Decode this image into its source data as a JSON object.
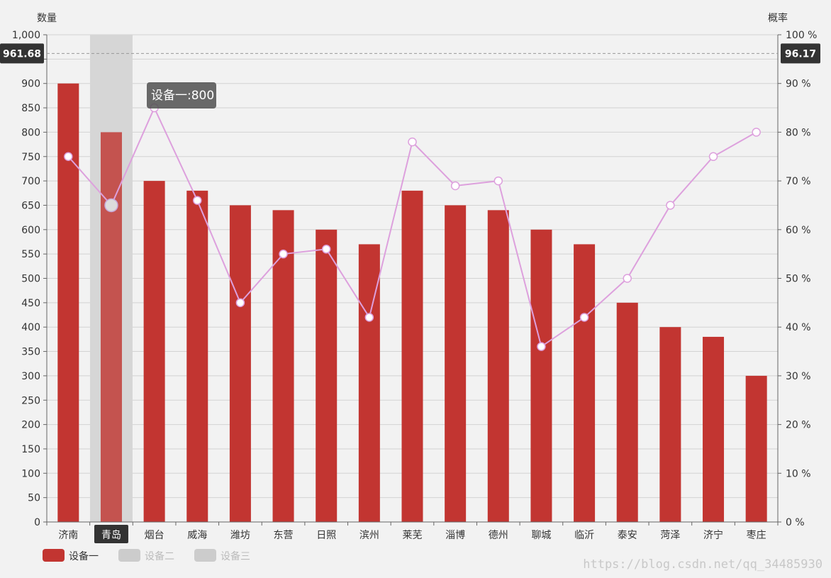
{
  "chart_data": {
    "type": "bar",
    "categories": [
      "济南",
      "青岛",
      "烟台",
      "威海",
      "潍坊",
      "东营",
      "日照",
      "滨州",
      "莱芜",
      "淄博",
      "德州",
      "聊城",
      "临沂",
      "泰安",
      "菏泽",
      "济宁",
      "枣庄"
    ],
    "series": [
      {
        "name": "设备一",
        "type": "bar",
        "values": [
          900,
          800,
          700,
          680,
          650,
          640,
          600,
          570,
          680,
          650,
          640,
          600,
          570,
          450,
          400,
          380,
          300
        ],
        "color": "#c23531"
      },
      {
        "name": "",
        "type": "line",
        "axis": "right",
        "values": [
          75,
          65,
          85,
          66,
          45,
          55,
          56,
          42,
          78,
          69,
          70,
          36,
          42,
          50,
          65,
          75,
          80
        ],
        "color": "#dda0dd"
      }
    ],
    "legend": {
      "placement": "bottom-left",
      "items": [
        {
          "name": "设备一",
          "active": true,
          "color": "#c23531"
        },
        {
          "name": "设备二",
          "active": false,
          "color": "#cccccc"
        },
        {
          "name": "设备三",
          "active": false,
          "color": "#cccccc"
        }
      ]
    },
    "y_left": {
      "label": "数量",
      "min": 0,
      "max": 1000,
      "step": 50,
      "format": "thousands"
    },
    "y_right": {
      "label": "概率",
      "min": 0,
      "max": 100,
      "step": 10,
      "suffix": " %"
    },
    "grid": true,
    "axis_pointer": {
      "left_value": "961.68",
      "right_value": "96.17",
      "y_value": 961.68
    },
    "highlight": {
      "category": "青岛",
      "tooltip": "设备一:800"
    }
  },
  "watermark": "https://blog.csdn.net/qq_34485930"
}
